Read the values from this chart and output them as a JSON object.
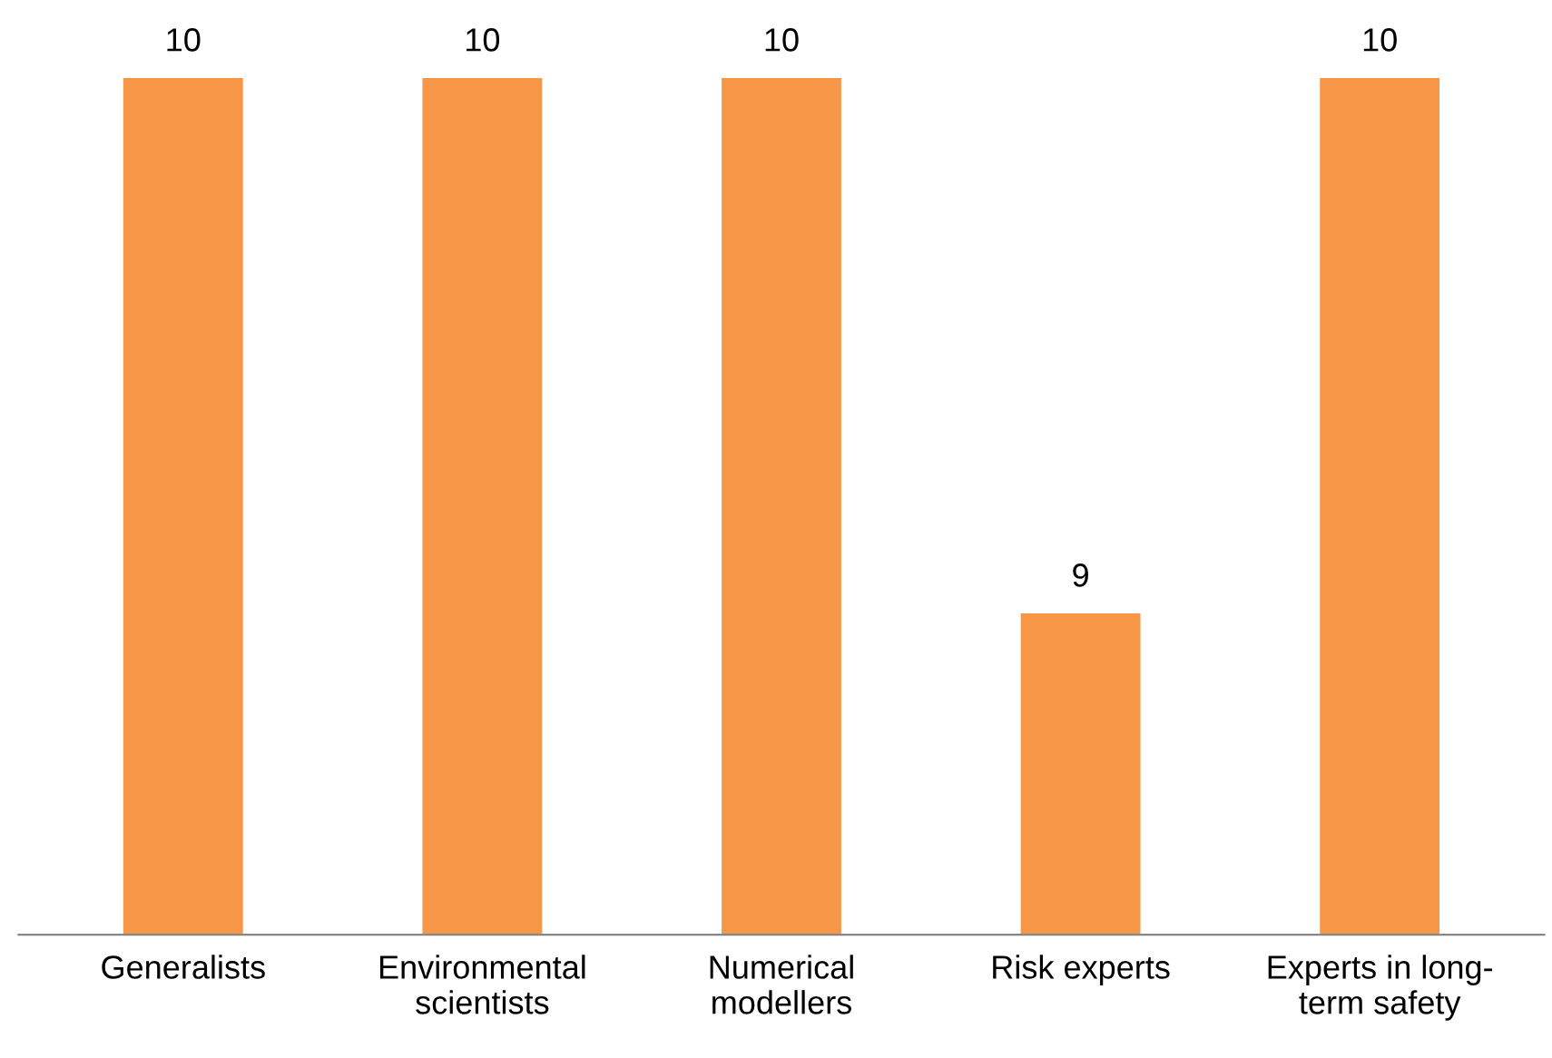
{
  "chart_data": {
    "type": "bar",
    "categories": [
      "Generalists",
      "Environmental\nscientists",
      "Numerical\nmodellers",
      "Risk experts",
      "Experts in long-\nterm safety"
    ],
    "values": [
      10,
      10,
      10,
      9,
      10
    ],
    "color": "#f79646",
    "ylim": [
      8.4,
      10
    ],
    "tick_labels": "x",
    "data_labels": true,
    "grid": false,
    "legend": false
  }
}
